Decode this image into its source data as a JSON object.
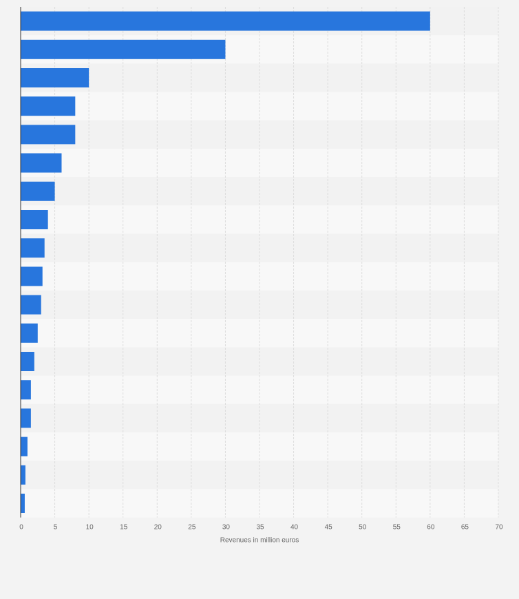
{
  "chart_data": {
    "type": "bar",
    "orientation": "horizontal",
    "categories": [
      null,
      null,
      null,
      null,
      null,
      null,
      null,
      null,
      null,
      null,
      null,
      null,
      null,
      null,
      null,
      null,
      null,
      null
    ],
    "values": [
      60,
      30,
      10,
      8,
      8,
      6,
      5,
      4,
      3.5,
      3.2,
      3,
      2.5,
      2,
      1.5,
      1.5,
      1,
      0.7,
      0.6
    ],
    "color": "#2876dd",
    "xlim": [
      0,
      70
    ],
    "xticks": [
      0,
      5,
      10,
      15,
      20,
      25,
      30,
      35,
      40,
      45,
      50,
      55,
      60,
      65,
      70
    ],
    "x_label": "Revenues in million euros",
    "grid": true
  }
}
